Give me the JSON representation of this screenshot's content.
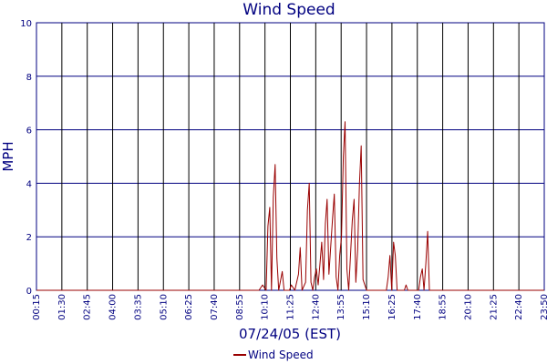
{
  "chart_data": {
    "type": "line",
    "title": "Wind Speed",
    "xlabel": "07/24/05 (EST)",
    "ylabel": "MPH",
    "ylim": [
      0,
      10
    ],
    "yticks": [
      "0",
      "2",
      "4",
      "6",
      "8",
      "10"
    ],
    "xlim": [
      "00:15",
      "23:50"
    ],
    "xticks": [
      "00:15",
      "01:30",
      "02:45",
      "04:00",
      "03:35",
      "05:10",
      "06:25",
      "07:40",
      "08:55",
      "10:10",
      "11:25",
      "12:40",
      "13:55",
      "15:10",
      "16:25",
      "17:40",
      "18:55",
      "20:10",
      "21:25",
      "22:40",
      "23:50"
    ],
    "grid": true,
    "legend_position": "bottom-center",
    "series": [
      {
        "name": "Wind Speed",
        "color": "#990000",
        "points": [
          [
            "00:15",
            0
          ],
          [
            "10:35",
            0
          ],
          [
            "10:45",
            0.2
          ],
          [
            "10:55",
            0
          ],
          [
            "11:00",
            2.4
          ],
          [
            "11:05",
            3.1
          ],
          [
            "11:10",
            0
          ],
          [
            "11:15",
            3.5
          ],
          [
            "11:20",
            4.7
          ],
          [
            "11:25",
            1.2
          ],
          [
            "11:30",
            0
          ],
          [
            "11:40",
            0.7
          ],
          [
            "11:45",
            0
          ],
          [
            "12:00",
            0
          ],
          [
            "12:05",
            0.2
          ],
          [
            "12:15",
            0
          ],
          [
            "12:25",
            0.6
          ],
          [
            "12:30",
            1.6
          ],
          [
            "12:35",
            0
          ],
          [
            "12:45",
            0.3
          ],
          [
            "12:50",
            3.0
          ],
          [
            "12:55",
            4.0
          ],
          [
            "13:00",
            0.3
          ],
          [
            "13:05",
            0
          ],
          [
            "13:10",
            0.5
          ],
          [
            "13:15",
            0.8
          ],
          [
            "13:20",
            0.2
          ],
          [
            "13:25",
            1.0
          ],
          [
            "13:30",
            1.8
          ],
          [
            "13:35",
            0.4
          ],
          [
            "13:40",
            2.5
          ],
          [
            "13:45",
            3.4
          ],
          [
            "13:50",
            0.6
          ],
          [
            "14:00",
            2.7
          ],
          [
            "14:05",
            3.6
          ],
          [
            "14:10",
            0.5
          ],
          [
            "14:15",
            0
          ],
          [
            "14:20",
            1.3
          ],
          [
            "14:25",
            2.0
          ],
          [
            "14:30",
            5.0
          ],
          [
            "14:35",
            6.3
          ],
          [
            "14:40",
            0.8
          ],
          [
            "14:45",
            0
          ],
          [
            "14:55",
            2.6
          ],
          [
            "15:00",
            3.4
          ],
          [
            "15:05",
            0.3
          ],
          [
            "15:10",
            1.5
          ],
          [
            "15:15",
            4.0
          ],
          [
            "15:20",
            5.4
          ],
          [
            "15:25",
            0.4
          ],
          [
            "15:35",
            0
          ],
          [
            "16:30",
            0
          ],
          [
            "16:35",
            0.5
          ],
          [
            "16:40",
            1.3
          ],
          [
            "16:45",
            0
          ],
          [
            "16:50",
            1.8
          ],
          [
            "16:55",
            1.3
          ],
          [
            "17:00",
            0
          ],
          [
            "17:20",
            0
          ],
          [
            "17:25",
            0.2
          ],
          [
            "17:30",
            0
          ],
          [
            "18:00",
            0
          ],
          [
            "18:05",
            0.5
          ],
          [
            "18:10",
            0.8
          ],
          [
            "18:15",
            0
          ],
          [
            "18:20",
            1.0
          ],
          [
            "18:25",
            2.2
          ],
          [
            "18:30",
            0
          ],
          [
            "23:50",
            0
          ]
        ]
      }
    ]
  }
}
